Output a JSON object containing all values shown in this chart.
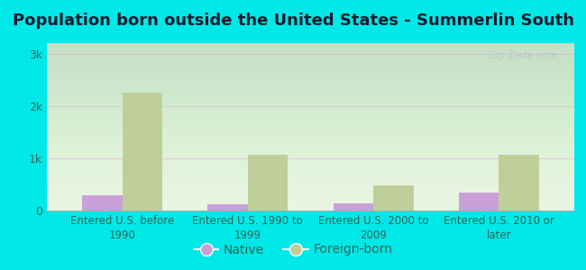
{
  "title": "Population born outside the United States - Summerlin South",
  "categories": [
    "Entered U.S. before\n1990",
    "Entered U.S. 1990 to\n1999",
    "Entered U.S. 2000 to\n2009",
    "Entered U.S. 2010 or\nlater"
  ],
  "native_values": [
    300,
    120,
    130,
    340
  ],
  "foreign_values": [
    2250,
    1060,
    480,
    1060
  ],
  "native_color": "#c9a0d8",
  "foreign_color": "#c0ce9a",
  "background_outer": "#00e8e8",
  "background_plot": "#e6f5e0",
  "yticks": [
    0,
    1000,
    2000,
    3000
  ],
  "ytick_labels": [
    "0",
    "1k",
    "2k",
    "3k"
  ],
  "ylim": [
    0,
    3200
  ],
  "title_fontsize": 13,
  "tick_fontsize": 9,
  "legend_fontsize": 10,
  "bar_width": 0.32,
  "watermark": "City-Data.com"
}
